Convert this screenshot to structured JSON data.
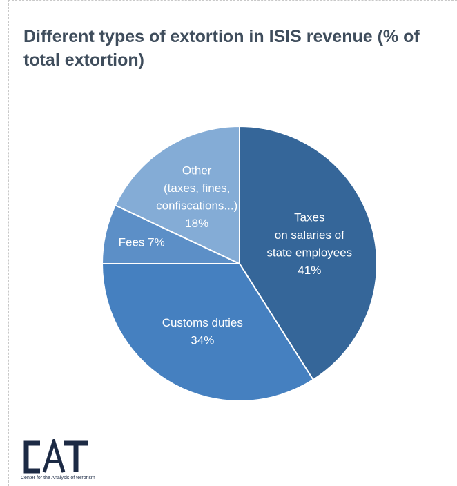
{
  "chart_data": {
    "type": "pie",
    "title": "Different types of extortion in ISIS revenue (% of total extortion)",
    "unit": "%",
    "slices": [
      {
        "label_lines": [
          "Taxes",
          "on salaries of",
          "state employees",
          "41%"
        ],
        "category": "Taxes on salaries of state employees",
        "value": 41,
        "color": "#356699"
      },
      {
        "label_lines": [
          "Customs duties",
          "34%"
        ],
        "category": "Customs duties",
        "value": 34,
        "color": "#4580c0"
      },
      {
        "label_lines": [
          "Fees 7%"
        ],
        "category": "Fees",
        "value": 7,
        "color": "#5c8fc7"
      },
      {
        "label_lines": [
          "Other",
          "(taxes, fines,",
          "confiscations...)",
          "18%"
        ],
        "category": "Other (taxes, fines, confiscations...)",
        "value": 18,
        "color": "#84acd6"
      }
    ]
  },
  "logo": {
    "name": "CAT",
    "subtitle": "Center for the Analysis of terrorism"
  }
}
